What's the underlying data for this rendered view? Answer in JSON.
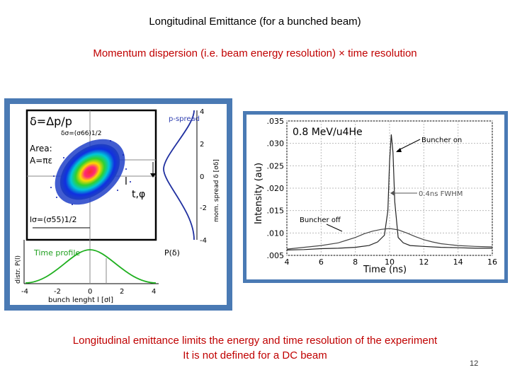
{
  "slide": {
    "title": "Longitudinal Emittance (for a bunched beam)",
    "subtitle": "Momentum dispersion (i.e. beam energy resolution) × time resolution",
    "footer_line1": "Longitudinal emittance limits the energy and time resolution of the experiment",
    "footer_line2": "It is not defined for a DC beam",
    "page_number": "12"
  },
  "left_figure": {
    "delta_def": "δ=Δp/p",
    "delta_sigma": "δσ=(σ66)1/2",
    "area_label": "Area:",
    "area_formula": "A=πε",
    "l_sigma": "lσ=(σ55)1/2",
    "p_spread": "p-spread",
    "time_profile": "Time profile",
    "p_delta": "P(δ)",
    "l_t_label": "l",
    "t_phi_label": "t,φ",
    "right_axis_label": "mom. spread δ [σδ]",
    "right_ticks": [
      "4",
      "2",
      "0",
      "-2",
      "-4"
    ],
    "left_axis_label": "distr. P(l)",
    "bottom_ticks": [
      "-4",
      "-2",
      "0",
      "2",
      "4"
    ],
    "bottom_axis_label": "bunch lenght l [σl]"
  },
  "chart_data": {
    "type": "line",
    "annotation_top": "0.8 MeV/u4He",
    "xlabel": "Time (ns)",
    "ylabel": "Intensity (au)",
    "xlim": [
      4,
      16
    ],
    "ylim": [
      0.005,
      0.035
    ],
    "x_ticks": [
      "4",
      "6",
      "8",
      "10",
      "12",
      "14",
      "16"
    ],
    "y_ticks": [
      ".035",
      ".030",
      ".025",
      ".020",
      ".015",
      ".010",
      ".005"
    ],
    "annotations": [
      "Buncher on",
      "0.4ns FWHM",
      "Buncher off"
    ],
    "series": [
      {
        "x": [
          4,
          5,
          6,
          7,
          8,
          8.8,
          9.3,
          9.7,
          9.9,
          10.0,
          10.1,
          10.2,
          10.3,
          10.5,
          10.8,
          11.2,
          12,
          13,
          14,
          15,
          16
        ],
        "y": [
          0.0062,
          0.0063,
          0.0065,
          0.0066,
          0.0068,
          0.0072,
          0.008,
          0.0095,
          0.015,
          0.026,
          0.032,
          0.028,
          0.017,
          0.009,
          0.0078,
          0.0072,
          0.007,
          0.0068,
          0.0067,
          0.0066,
          0.0066
        ]
      },
      {
        "x": [
          4,
          5,
          6,
          7,
          7.5,
          8,
          8.5,
          9,
          9.5,
          10,
          10.5,
          11,
          11.5,
          12,
          12.5,
          13,
          14,
          15,
          16
        ],
        "y": [
          0.0064,
          0.0068,
          0.0072,
          0.0078,
          0.0084,
          0.009,
          0.0098,
          0.0104,
          0.0108,
          0.011,
          0.0107,
          0.01,
          0.0092,
          0.0085,
          0.008,
          0.0076,
          0.0072,
          0.007,
          0.0069
        ]
      }
    ]
  }
}
